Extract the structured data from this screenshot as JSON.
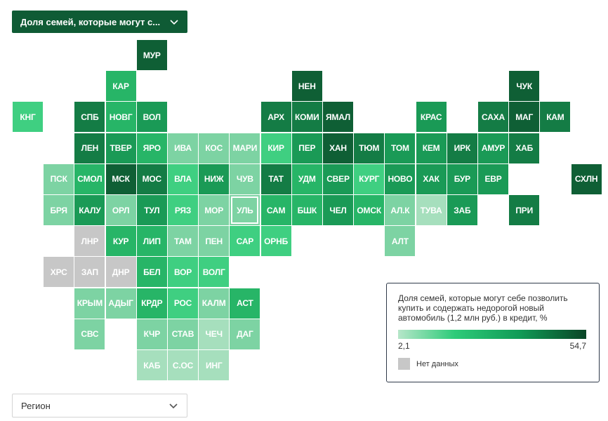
{
  "indicator_select": {
    "label": "Доля семей, которые могут с..."
  },
  "region_select": {
    "placeholder": "Регион"
  },
  "legend": {
    "title": "Доля семей, которые могут себе позволить купить и содержать недорогой новый автомобиль (1,2 млн руб.) в кредит, %",
    "min_label": "2,1",
    "max_label": "54,7",
    "no_data_label": "Нет данных",
    "color_min": "#b6e6c9",
    "color_max": "#0a4526",
    "no_data_color": "#c7c7c7"
  },
  "colors": {
    "header_select_bg": "#0f5b35",
    "tile_shades": {
      "l1": "#a6dfbd",
      "l2": "#7dd3a3",
      "l3": "#3fcf81",
      "l4": "#27b567",
      "l5": "#1a9a56",
      "l6": "#147c45",
      "l7": "#0f5f35",
      "no_data": "#c7c7c7"
    }
  },
  "tiles": [
    {
      "code": "МУР",
      "row": 0,
      "col": 4,
      "shade": "l7"
    },
    {
      "code": "КАР",
      "row": 1,
      "col": 3,
      "shade": "l4"
    },
    {
      "code": "НЕН",
      "row": 1,
      "col": 9,
      "shade": "l7"
    },
    {
      "code": "ЧУК",
      "row": 1,
      "col": 16,
      "shade": "l7"
    },
    {
      "code": "КНГ",
      "row": 2,
      "col": 0,
      "shade": "l3"
    },
    {
      "code": "СПБ",
      "row": 2,
      "col": 2,
      "shade": "l6"
    },
    {
      "code": "НОВГ",
      "row": 2,
      "col": 3,
      "shade": "l4"
    },
    {
      "code": "ВОЛ",
      "row": 2,
      "col": 4,
      "shade": "l5"
    },
    {
      "code": "АРХ",
      "row": 2,
      "col": 8,
      "shade": "l6"
    },
    {
      "code": "КОМИ",
      "row": 2,
      "col": 9,
      "shade": "l6"
    },
    {
      "code": "ЯМАЛ",
      "row": 2,
      "col": 10,
      "shade": "l7"
    },
    {
      "code": "КРАС",
      "row": 2,
      "col": 13,
      "shade": "l5"
    },
    {
      "code": "САХА",
      "row": 2,
      "col": 15,
      "shade": "l6"
    },
    {
      "code": "МАГ",
      "row": 2,
      "col": 16,
      "shade": "l7"
    },
    {
      "code": "КАМ",
      "row": 2,
      "col": 17,
      "shade": "l6"
    },
    {
      "code": "ЛЕН",
      "row": 3,
      "col": 2,
      "shade": "l6"
    },
    {
      "code": "ТВЕР",
      "row": 3,
      "col": 3,
      "shade": "l5"
    },
    {
      "code": "ЯРО",
      "row": 3,
      "col": 4,
      "shade": "l4"
    },
    {
      "code": "ИВА",
      "row": 3,
      "col": 5,
      "shade": "l2"
    },
    {
      "code": "КОС",
      "row": 3,
      "col": 6,
      "shade": "l2"
    },
    {
      "code": "МАРИ",
      "row": 3,
      "col": 7,
      "shade": "l2"
    },
    {
      "code": "КИР",
      "row": 3,
      "col": 8,
      "shade": "l3"
    },
    {
      "code": "ПЕР",
      "row": 3,
      "col": 9,
      "shade": "l5"
    },
    {
      "code": "ХАН",
      "row": 3,
      "col": 10,
      "shade": "l7"
    },
    {
      "code": "ТЮМ",
      "row": 3,
      "col": 11,
      "shade": "l6"
    },
    {
      "code": "ТОМ",
      "row": 3,
      "col": 12,
      "shade": "l5"
    },
    {
      "code": "КЕМ",
      "row": 3,
      "col": 13,
      "shade": "l5"
    },
    {
      "code": "ИРК",
      "row": 3,
      "col": 14,
      "shade": "l6"
    },
    {
      "code": "АМУР",
      "row": 3,
      "col": 15,
      "shade": "l5"
    },
    {
      "code": "ХАБ",
      "row": 3,
      "col": 16,
      "shade": "l6"
    },
    {
      "code": "ПСК",
      "row": 4,
      "col": 1,
      "shade": "l2"
    },
    {
      "code": "СМОЛ",
      "row": 4,
      "col": 2,
      "shade": "l4"
    },
    {
      "code": "МСК",
      "row": 4,
      "col": 3,
      "shade": "l7"
    },
    {
      "code": "МОС",
      "row": 4,
      "col": 4,
      "shade": "l6"
    },
    {
      "code": "ВЛА",
      "row": 4,
      "col": 5,
      "shade": "l3"
    },
    {
      "code": "НИЖ",
      "row": 4,
      "col": 6,
      "shade": "l5"
    },
    {
      "code": "ЧУВ",
      "row": 4,
      "col": 7,
      "shade": "l2"
    },
    {
      "code": "ТАТ",
      "row": 4,
      "col": 8,
      "shade": "l6"
    },
    {
      "code": "УДМ",
      "row": 4,
      "col": 9,
      "shade": "l4"
    },
    {
      "code": "СВЕР",
      "row": 4,
      "col": 10,
      "shade": "l5"
    },
    {
      "code": "КУРГ",
      "row": 4,
      "col": 11,
      "shade": "l3"
    },
    {
      "code": "НОВО",
      "row": 4,
      "col": 12,
      "shade": "l5"
    },
    {
      "code": "ХАК",
      "row": 4,
      "col": 13,
      "shade": "l5"
    },
    {
      "code": "БУР",
      "row": 4,
      "col": 14,
      "shade": "l5"
    },
    {
      "code": "ЕВР",
      "row": 4,
      "col": 15,
      "shade": "l5"
    },
    {
      "code": "СХЛН",
      "row": 4,
      "col": 18,
      "shade": "l7"
    },
    {
      "code": "БРЯ",
      "row": 5,
      "col": 1,
      "shade": "l2"
    },
    {
      "code": "КАЛУ",
      "row": 5,
      "col": 2,
      "shade": "l5"
    },
    {
      "code": "ОРЛ",
      "row": 5,
      "col": 3,
      "shade": "l2"
    },
    {
      "code": "ТУЛ",
      "row": 5,
      "col": 4,
      "shade": "l5"
    },
    {
      "code": "РЯЗ",
      "row": 5,
      "col": 5,
      "shade": "l3"
    },
    {
      "code": "МОР",
      "row": 5,
      "col": 6,
      "shade": "l2"
    },
    {
      "code": "УЛЬ",
      "row": 5,
      "col": 7,
      "shade": "l2",
      "selected": true
    },
    {
      "code": "САМ",
      "row": 5,
      "col": 8,
      "shade": "l4"
    },
    {
      "code": "БШК",
      "row": 5,
      "col": 9,
      "shade": "l4"
    },
    {
      "code": "ЧЕЛ",
      "row": 5,
      "col": 10,
      "shade": "l5"
    },
    {
      "code": "ОМСК",
      "row": 5,
      "col": 11,
      "shade": "l4"
    },
    {
      "code": "АЛ.К",
      "row": 5,
      "col": 12,
      "shade": "l2"
    },
    {
      "code": "ТУВА",
      "row": 5,
      "col": 13,
      "shade": "l1"
    },
    {
      "code": "ЗАБ",
      "row": 5,
      "col": 14,
      "shade": "l5"
    },
    {
      "code": "ПРИ",
      "row": 5,
      "col": 16,
      "shade": "l6"
    },
    {
      "code": "ЛНР",
      "row": 6,
      "col": 2,
      "shade": "no_data"
    },
    {
      "code": "КУР",
      "row": 6,
      "col": 3,
      "shade": "l4"
    },
    {
      "code": "ЛИП",
      "row": 6,
      "col": 4,
      "shade": "l4"
    },
    {
      "code": "ТАМ",
      "row": 6,
      "col": 5,
      "shade": "l2"
    },
    {
      "code": "ПЕН",
      "row": 6,
      "col": 6,
      "shade": "l2"
    },
    {
      "code": "САР",
      "row": 6,
      "col": 7,
      "shade": "l3"
    },
    {
      "code": "ОРНБ",
      "row": 6,
      "col": 8,
      "shade": "l3"
    },
    {
      "code": "АЛТ",
      "row": 6,
      "col": 12,
      "shade": "l2"
    },
    {
      "code": "ХРС",
      "row": 7,
      "col": 1,
      "shade": "no_data"
    },
    {
      "code": "ЗАП",
      "row": 7,
      "col": 2,
      "shade": "no_data"
    },
    {
      "code": "ДНР",
      "row": 7,
      "col": 3,
      "shade": "no_data"
    },
    {
      "code": "БЕЛ",
      "row": 7,
      "col": 4,
      "shade": "l4"
    },
    {
      "code": "ВОР",
      "row": 7,
      "col": 5,
      "shade": "l3"
    },
    {
      "code": "ВОЛГ",
      "row": 7,
      "col": 6,
      "shade": "l3"
    },
    {
      "code": "КРЫМ",
      "row": 8,
      "col": 2,
      "shade": "l2"
    },
    {
      "code": "АДЫГ",
      "row": 8,
      "col": 3,
      "shade": "l2"
    },
    {
      "code": "КРДР",
      "row": 8,
      "col": 4,
      "shade": "l4"
    },
    {
      "code": "РОС",
      "row": 8,
      "col": 5,
      "shade": "l3"
    },
    {
      "code": "КАЛМ",
      "row": 8,
      "col": 6,
      "shade": "l2"
    },
    {
      "code": "АСТ",
      "row": 8,
      "col": 7,
      "shade": "l4"
    },
    {
      "code": "СВС",
      "row": 9,
      "col": 2,
      "shade": "l2"
    },
    {
      "code": "КЧР",
      "row": 9,
      "col": 4,
      "shade": "l2"
    },
    {
      "code": "СТАВ",
      "row": 9,
      "col": 5,
      "shade": "l2"
    },
    {
      "code": "ЧЕЧ",
      "row": 9,
      "col": 6,
      "shade": "l1"
    },
    {
      "code": "ДАГ",
      "row": 9,
      "col": 7,
      "shade": "l2"
    },
    {
      "code": "КАБ",
      "row": 10,
      "col": 4,
      "shade": "l1"
    },
    {
      "code": "С.ОС",
      "row": 10,
      "col": 5,
      "shade": "l1"
    },
    {
      "code": "ИНГ",
      "row": 10,
      "col": 6,
      "shade": "l1"
    }
  ]
}
